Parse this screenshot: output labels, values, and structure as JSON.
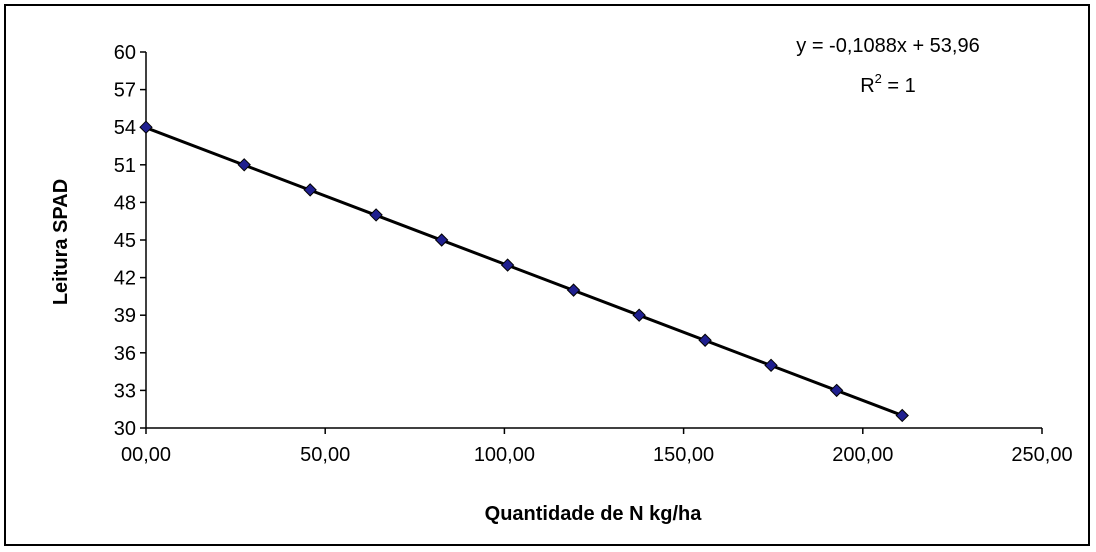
{
  "chart_data": {
    "type": "scatter",
    "title": "",
    "xlabel": "Quantidade de N kg/ha",
    "ylabel": "Leitura SPAD",
    "xlim": [
      0,
      250
    ],
    "ylim": [
      30,
      60
    ],
    "x_ticks": [
      "00,00",
      "50,00",
      "100,00",
      "150,00",
      "200,00",
      "250,00"
    ],
    "y_ticks": [
      "30",
      "33",
      "36",
      "39",
      "42",
      "45",
      "48",
      "51",
      "54",
      "57",
      "60"
    ],
    "grid": false,
    "legend": "none",
    "series": [
      {
        "x": [
          0,
          27.4,
          45.8,
          64.2,
          82.5,
          100.9,
          119.3,
          137.6,
          156.0,
          174.4,
          192.7,
          211.0
        ],
        "y": [
          54,
          51,
          49,
          47,
          45,
          43,
          41,
          39,
          37,
          35,
          33,
          31
        ],
        "marker_color": "#1f1f8f",
        "marker": "diamond"
      }
    ],
    "trendline": {
      "slope": -0.1088,
      "intercept": 53.96,
      "x_range": [
        0,
        211.0
      ],
      "color": "#000000"
    },
    "annotations": {
      "equation": "y = -0,1088x + 53,96",
      "r2_prefix": "R",
      "r2_sup": "2",
      "r2_suffix": " = 1"
    }
  }
}
